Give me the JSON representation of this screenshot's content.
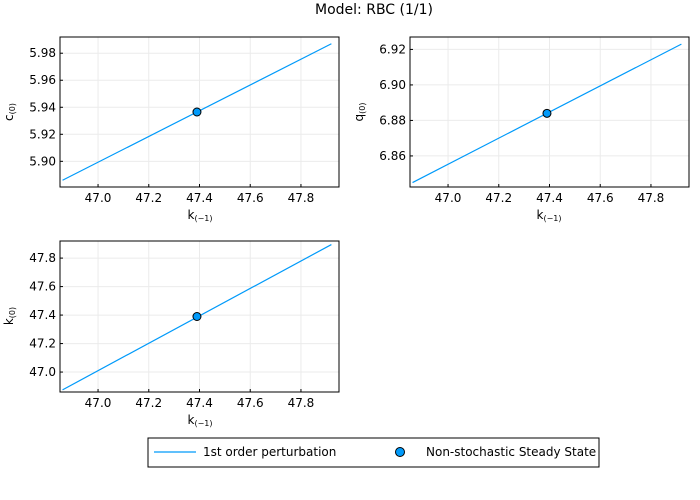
{
  "figure_title": "Model: RBC  (1/1)",
  "colors": {
    "line": "#009AFA",
    "marker_fill": "#009AFA",
    "marker_edge": "#000000"
  },
  "legend": {
    "items": [
      {
        "label": "1st order perturbation",
        "kind": "line"
      },
      {
        "label": "Non-stochastic Steady State",
        "kind": "marker"
      }
    ]
  },
  "chart_data": [
    {
      "type": "line",
      "name": "c",
      "xlabel_base": "k",
      "xlabel_sub": "(−1)",
      "ylabel_base": "c",
      "ylabel_sub": "(0)",
      "xlim": [
        46.85,
        47.95
      ],
      "ylim": [
        5.881,
        5.992
      ],
      "xticks": [
        47.0,
        47.2,
        47.4,
        47.6,
        47.8
      ],
      "xtick_labels": [
        "47.0",
        "47.2",
        "47.4",
        "47.6",
        "47.8"
      ],
      "yticks": [
        5.9,
        5.92,
        5.94,
        5.96,
        5.98
      ],
      "ytick_labels": [
        "5.90",
        "5.92",
        "5.94",
        "5.96",
        "5.98"
      ],
      "series": [
        {
          "name": "1st order perturbation",
          "x": [
            46.86,
            47.92
          ],
          "y": [
            5.886,
            5.987
          ]
        }
      ],
      "steady_state": {
        "x": 47.39,
        "y": 5.9365
      }
    },
    {
      "type": "line",
      "name": "q",
      "xlabel_base": "k",
      "xlabel_sub": "(−1)",
      "ylabel_base": "q",
      "ylabel_sub": "(0)",
      "xlim": [
        46.85,
        47.95
      ],
      "ylim": [
        6.8425,
        6.927
      ],
      "xticks": [
        47.0,
        47.2,
        47.4,
        47.6,
        47.8
      ],
      "xtick_labels": [
        "47.0",
        "47.2",
        "47.4",
        "47.6",
        "47.8"
      ],
      "yticks": [
        6.86,
        6.88,
        6.9,
        6.92
      ],
      "ytick_labels": [
        "6.86",
        "6.88",
        "6.90",
        "6.92"
      ],
      "series": [
        {
          "name": "1st order perturbation",
          "x": [
            46.86,
            47.92
          ],
          "y": [
            6.845,
            6.923
          ]
        }
      ],
      "steady_state": {
        "x": 47.39,
        "y": 6.884
      }
    },
    {
      "type": "line",
      "name": "k",
      "xlabel_base": "k",
      "xlabel_sub": "(−1)",
      "ylabel_base": "k",
      "ylabel_sub": "(0)",
      "xlim": [
        46.85,
        47.95
      ],
      "ylim": [
        46.86,
        47.92
      ],
      "xticks": [
        47.0,
        47.2,
        47.4,
        47.6,
        47.8
      ],
      "xtick_labels": [
        "47.0",
        "47.2",
        "47.4",
        "47.6",
        "47.8"
      ],
      "yticks": [
        47.0,
        47.2,
        47.4,
        47.6,
        47.8
      ],
      "ytick_labels": [
        "47.0",
        "47.2",
        "47.4",
        "47.6",
        "47.8"
      ],
      "series": [
        {
          "name": "1st order perturbation",
          "x": [
            46.86,
            47.92
          ],
          "y": [
            46.875,
            47.895
          ]
        }
      ],
      "steady_state": {
        "x": 47.39,
        "y": 47.39
      }
    }
  ]
}
